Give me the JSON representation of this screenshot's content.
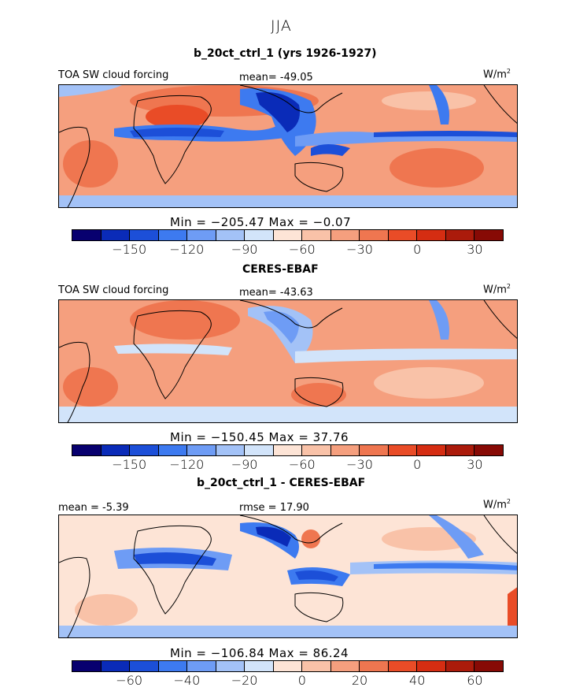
{
  "season_title": "JJA",
  "colors": [
    "#08006f",
    "#0a2bb8",
    "#1c4fd8",
    "#3d7af0",
    "#6e9cf5",
    "#a3c2f7",
    "#d2e4fa",
    "#fde4d6",
    "#f9c2a8",
    "#f59f7e",
    "#ef7650",
    "#e94c27",
    "#d52d12",
    "#ab1b0b",
    "#870a05"
  ],
  "panels": [
    {
      "subtitle": "b_20ct_ctrl_1 (yrs 1926-1927)",
      "left_label": "TOA SW cloud forcing",
      "center_label": "mean= -49.05",
      "unit_base": "W/m",
      "unit_exp": "2",
      "minmax": "Min = −205.47 Max =  −0.07",
      "ticks": [
        "−150",
        "−120",
        "−90",
        "−60",
        "−30",
        "0",
        "30"
      ],
      "background_color": "#f59f7e"
    },
    {
      "subtitle": "CERES-EBAF",
      "left_label": "TOA SW cloud forcing",
      "center_label": "mean= -43.63",
      "unit_base": "W/m",
      "unit_exp": "2",
      "minmax": "Min = −150.45 Max =  37.76",
      "ticks": [
        "−150",
        "−120",
        "−90",
        "−60",
        "−30",
        "0",
        "30"
      ],
      "background_color": "#f59f7e"
    },
    {
      "subtitle": "b_20ct_ctrl_1 - CERES-EBAF",
      "left_label": "mean =  -5.39",
      "center_label": "rmse =  17.90",
      "unit_base": "W/m",
      "unit_exp": "2",
      "minmax": "Min = −106.84 Max =  86.24",
      "ticks": [
        "−60",
        "−40",
        "−20",
        "0",
        "20",
        "40",
        "60"
      ],
      "background_color": "#fde4d6"
    }
  ]
}
